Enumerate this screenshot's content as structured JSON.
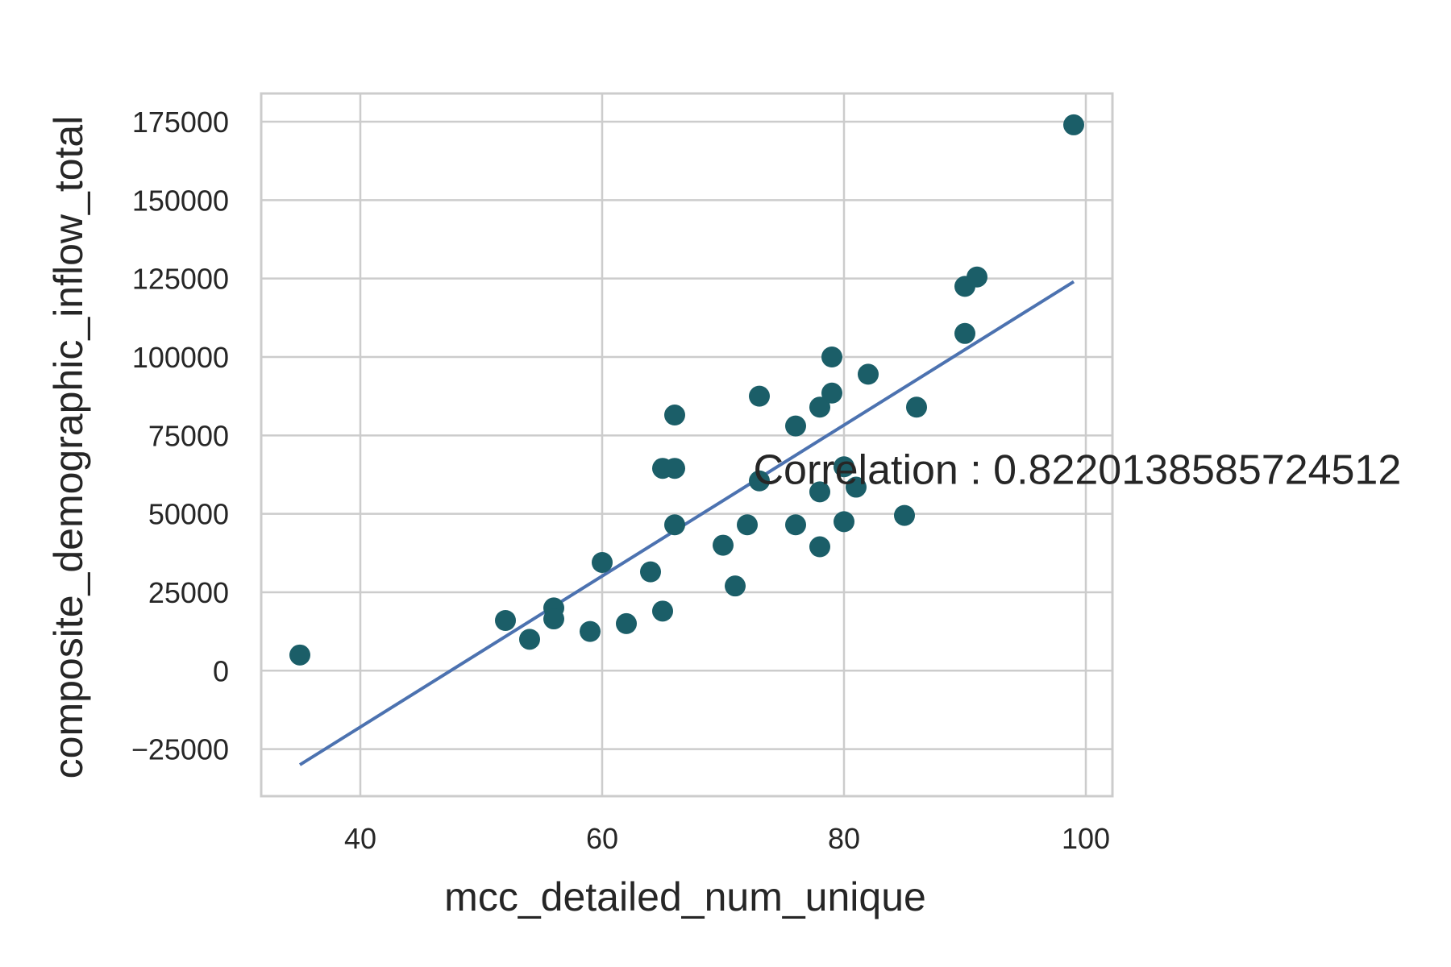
{
  "chart_data": {
    "type": "scatter",
    "title": "",
    "xlabel": "mcc_detailed_num_unique",
    "ylabel": "composite_demographic_inflow_total",
    "xlim": [
      31.8,
      102.2
    ],
    "ylim": [
      -40000,
      184000
    ],
    "xticks": [
      40,
      60,
      80,
      100
    ],
    "xtick_labels": [
      "40",
      "60",
      "80",
      "100"
    ],
    "yticks": [
      -25000,
      0,
      25000,
      50000,
      75000,
      100000,
      125000,
      150000,
      175000
    ],
    "ytick_labels": [
      "−25000",
      "0",
      "25000",
      "50000",
      "75000",
      "100000",
      "125000",
      "150000",
      "175000"
    ],
    "grid": true,
    "legend": "none",
    "point_color": "#1b5e68",
    "line_color": "#4c72b0",
    "points": [
      {
        "x": 35,
        "y": 5000
      },
      {
        "x": 52,
        "y": 16000
      },
      {
        "x": 54,
        "y": 10000
      },
      {
        "x": 56,
        "y": 20000
      },
      {
        "x": 56,
        "y": 16500
      },
      {
        "x": 59,
        "y": 12500
      },
      {
        "x": 60,
        "y": 34500
      },
      {
        "x": 62,
        "y": 15000
      },
      {
        "x": 64,
        "y": 31500
      },
      {
        "x": 65,
        "y": 19000
      },
      {
        "x": 65,
        "y": 64500
      },
      {
        "x": 66,
        "y": 64500
      },
      {
        "x": 66,
        "y": 81500
      },
      {
        "x": 66,
        "y": 46500
      },
      {
        "x": 70,
        "y": 40000
      },
      {
        "x": 71,
        "y": 27000
      },
      {
        "x": 72,
        "y": 46500
      },
      {
        "x": 73,
        "y": 87500
      },
      {
        "x": 73,
        "y": 60500
      },
      {
        "x": 76,
        "y": 78000
      },
      {
        "x": 76,
        "y": 46500
      },
      {
        "x": 78,
        "y": 84000
      },
      {
        "x": 78,
        "y": 57000
      },
      {
        "x": 78,
        "y": 39500
      },
      {
        "x": 79,
        "y": 100000
      },
      {
        "x": 79,
        "y": 88500
      },
      {
        "x": 80,
        "y": 65000
      },
      {
        "x": 80,
        "y": 47500
      },
      {
        "x": 81,
        "y": 58500
      },
      {
        "x": 82,
        "y": 94500
      },
      {
        "x": 85,
        "y": 49500
      },
      {
        "x": 86,
        "y": 84000
      },
      {
        "x": 90,
        "y": 122500
      },
      {
        "x": 90,
        "y": 107500
      },
      {
        "x": 91,
        "y": 125500
      },
      {
        "x": 99,
        "y": 174000
      }
    ],
    "fit_line": {
      "x": [
        35,
        99
      ],
      "y": [
        -30000,
        124000
      ]
    },
    "annotation": {
      "text": "Correlation : 0.8220138585724512",
      "x": 72.5,
      "y": 59500
    }
  }
}
